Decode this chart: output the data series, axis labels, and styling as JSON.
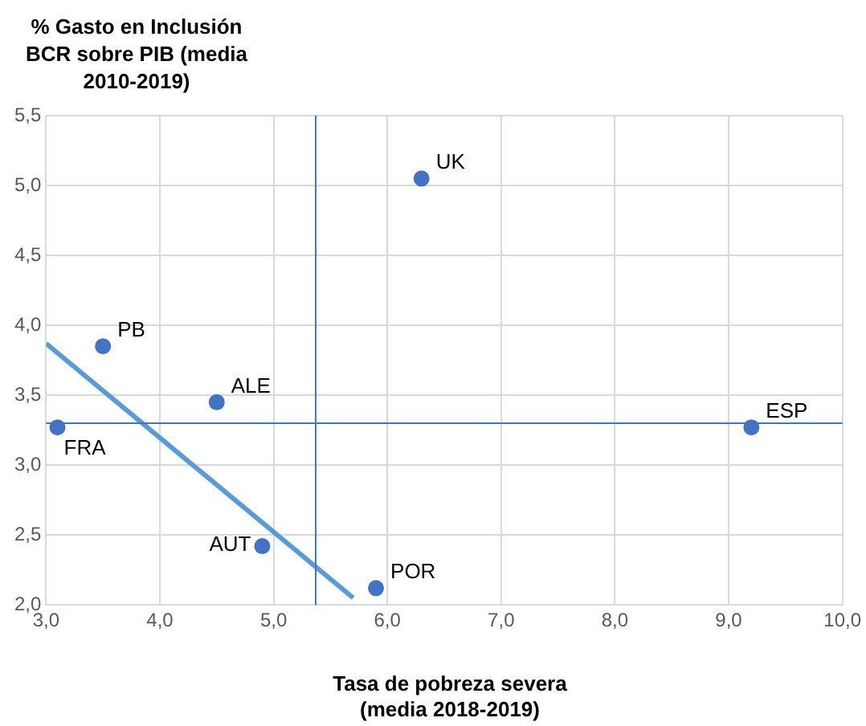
{
  "chart_data": {
    "type": "scatter",
    "ylabel": "% Gasto en Inclusión BCR sobre PIB (media 2010-2019)",
    "xlabel": "Tasa de pobreza severa (media 2018-2019)",
    "series": [
      {
        "color": "#4472c4",
        "marker": "circle",
        "x": [
          3.1,
          3.5,
          4.5,
          4.9,
          5.9,
          6.3,
          9.2
        ],
        "values": [
          3.27,
          3.85,
          3.45,
          2.42,
          2.12,
          5.05,
          3.27
        ]
      },
      {
        "type": "line",
        "color": "#5b9bd5",
        "x": [
          3.0,
          5.7
        ],
        "values": [
          3.87,
          2.05
        ],
        "marker": "none"
      }
    ],
    "annotations": [
      {
        "text": "FRA",
        "x": 3.1,
        "y": 3.27
      },
      {
        "text": "PB",
        "x": 3.5,
        "y": 3.85
      },
      {
        "text": "ALE",
        "x": 4.5,
        "y": 3.45
      },
      {
        "text": "AUT",
        "x": 4.9,
        "y": 2.42
      },
      {
        "text": "POR",
        "x": 5.9,
        "y": 2.12
      },
      {
        "text": "UK",
        "x": 6.3,
        "y": 5.05
      },
      {
        "text": "ESP",
        "x": 9.2,
        "y": 3.27
      }
    ],
    "ref_lines": [
      {
        "axis": "x",
        "value": 5.37,
        "color": "#4472c4"
      },
      {
        "axis": "y",
        "value": 3.3,
        "color": "#4472c4"
      }
    ],
    "xlim": [
      3.0,
      10.0
    ],
    "xticks": [
      {
        "value": 3,
        "label": "3,0"
      },
      {
        "value": 4,
        "label": "4,0"
      },
      {
        "value": 5,
        "label": "5,0"
      },
      {
        "value": 6,
        "label": "6,0"
      },
      {
        "value": 7,
        "label": "7,0"
      },
      {
        "value": 8,
        "label": "8,0"
      },
      {
        "value": 9,
        "label": "9,0"
      },
      {
        "value": 10,
        "label": "10,0"
      }
    ],
    "ylim": [
      2.0,
      5.5
    ],
    "yticks": [
      {
        "value": 2,
        "label": "2,0"
      },
      {
        "value": 2.5,
        "label": "2,5"
      },
      {
        "value": 3,
        "label": "3,0"
      },
      {
        "value": 3.5,
        "label": "3,5"
      },
      {
        "value": 4,
        "label": "4,0"
      },
      {
        "value": 4.5,
        "label": "4,5"
      },
      {
        "value": 5,
        "label": "5,0"
      },
      {
        "value": 5.5,
        "label": "5,5"
      }
    ],
    "grid": true,
    "legend": false
  }
}
